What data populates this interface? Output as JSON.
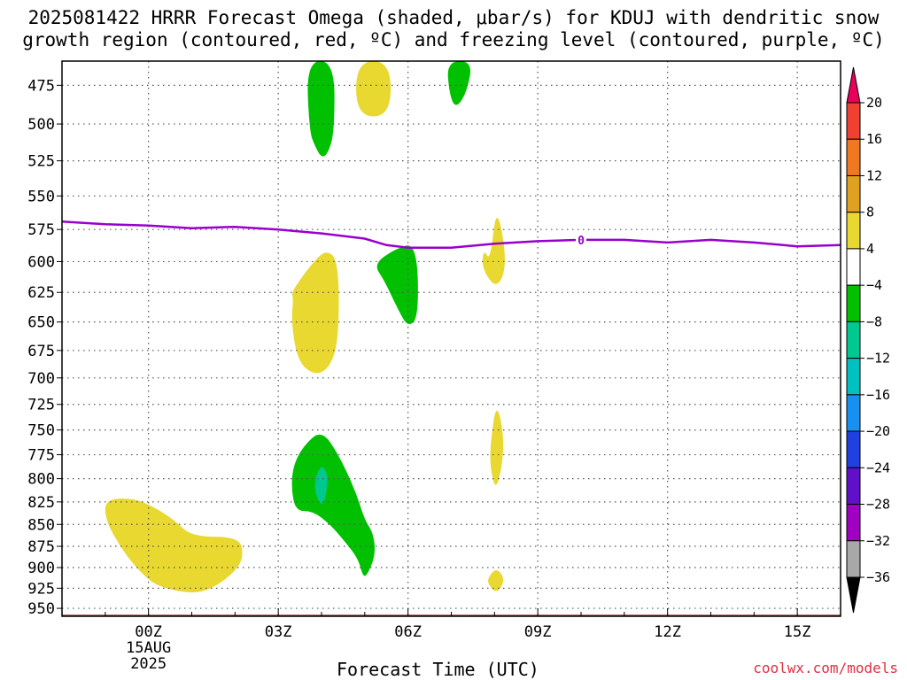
{
  "title": {
    "line1": "2025081422 HRRR Forecast Omega (shaded, μbar/s) for KDUJ with dendritic snow",
    "line2": "growth region (contoured, red, ºC) and freezing level (contoured, purple, ºC)"
  },
  "credit": "coolwx.com/models",
  "chart_data": {
    "type": "heatmap",
    "title": "2025081422 HRRR Forecast Omega (shaded, μbar/s) for KDUJ with dendritic snow growth region (contoured, red, ºC) and freezing level (contoured, purple, ºC)",
    "xlabel": "Forecast Time (UTC)",
    "ylabel": "",
    "x_unit": "hours since 2025-08-14 22Z",
    "xlim": [
      -2,
      16
    ],
    "ylim": [
      960,
      460
    ],
    "y_ticks": [
      475,
      500,
      525,
      550,
      575,
      600,
      625,
      650,
      675,
      700,
      725,
      750,
      775,
      800,
      825,
      850,
      875,
      900,
      925,
      950
    ],
    "x_ticks": [
      {
        "x": 0,
        "label": "00Z",
        "sub1": "15AUG",
        "sub2": "2025"
      },
      {
        "x": 3,
        "label": "03Z",
        "sub1": "",
        "sub2": ""
      },
      {
        "x": 6,
        "label": "06Z",
        "sub1": "",
        "sub2": ""
      },
      {
        "x": 9,
        "label": "09Z",
        "sub1": "",
        "sub2": ""
      },
      {
        "x": 12,
        "label": "12Z",
        "sub1": "",
        "sub2": ""
      },
      {
        "x": 15,
        "label": "15Z",
        "sub1": "",
        "sub2": ""
      }
    ],
    "grid": true,
    "colorbar": {
      "levels": [
        "20",
        "16",
        "12",
        "8",
        "4",
        "−4",
        "−8",
        "−12",
        "−16",
        "−20",
        "−24",
        "−28",
        "−32",
        "−36"
      ],
      "colors": [
        "#e8005a",
        "#f04030",
        "#f07820",
        "#e0a020",
        "#e8d830",
        "#ffffff",
        "#00c000",
        "#00c890",
        "#00c0c0",
        "#1890f0",
        "#2040e0",
        "#6010c8",
        "#a000c0",
        "#a8a8a8",
        "#000000"
      ]
    },
    "freezing_level": {
      "label": "0",
      "label_x": 10,
      "color": "#9900cc",
      "x": [
        -2,
        -1,
        0,
        1,
        2,
        3,
        4,
        5,
        5.5,
        6,
        7,
        8,
        9,
        10,
        11,
        12,
        13,
        14,
        15,
        16
      ],
      "y": [
        569,
        571,
        572,
        574,
        573,
        575,
        578,
        582,
        587,
        589,
        589,
        586,
        584,
        583,
        583,
        585,
        583,
        585,
        588,
        587
      ]
    },
    "terrain": {
      "color": "#a05030",
      "surface_hpa": 958
    },
    "regions": [
      {
        "level": "4 to 8",
        "color": "#e8d830",
        "x": [
          4.8,
          5.6,
          5.6,
          4.8
        ],
        "y": [
          460,
          460,
          495,
          495
        ]
      },
      {
        "level": "-4 to -8",
        "color": "#00c000",
        "x": [
          3.65,
          4.3,
          4.3,
          4.15,
          4.0,
          3.85,
          3.72
        ],
        "y": [
          460,
          460,
          505,
          520,
          523,
          515,
          505
        ]
      },
      {
        "level": "-4 to -8",
        "color": "#00c000",
        "x": [
          6.9,
          7.5,
          7.35,
          7.1,
          6.95
        ],
        "y": [
          460,
          460,
          480,
          490,
          480
        ]
      },
      {
        "level": "4 to 8",
        "color": "#e8d830",
        "x": [
          3.3,
          3.7,
          4.1,
          4.4,
          4.4,
          4.2,
          3.85,
          3.45,
          3.3,
          3.35
        ],
        "y": [
          625,
          605,
          590,
          600,
          665,
          690,
          698,
          685,
          650,
          630
        ]
      },
      {
        "level": "-4 to -8",
        "color": "#00c000",
        "x": [
          5.2,
          5.7,
          6.2,
          6.25,
          6.0,
          5.75,
          5.45
        ],
        "y": [
          602,
          590,
          585,
          645,
          655,
          638,
          615
        ]
      },
      {
        "level": "4 to 8",
        "color": "#e8d830",
        "x": [
          7.9,
          8.05,
          8.3,
          8.05,
          7.7,
          7.75
        ],
        "y": [
          600,
          555,
          602,
          623,
          605,
          590
        ]
      },
      {
        "level": "4 to 8",
        "color": "#e8d830",
        "x": [
          7.9,
          8.05,
          8.25,
          8.05,
          7.9
        ],
        "y": [
          765,
          720,
          765,
          815,
          790
        ]
      },
      {
        "level": "4 to 8",
        "color": "#e8d830",
        "x": [
          7.85,
          8.05,
          8.25,
          8.05,
          7.85
        ],
        "y": [
          912,
          900,
          915,
          932,
          920
        ]
      },
      {
        "level": "4 to 8",
        "color": "#e8d830",
        "x": [
          -1,
          -0.35,
          0.1,
          0.6,
          1,
          2.1,
          2.2,
          2.0,
          1.5,
          1.0,
          0.2,
          -0.2,
          -0.6,
          -1
        ],
        "y": [
          822,
          821,
          830,
          845,
          864,
          864,
          887,
          905,
          925,
          932,
          923,
          905,
          880,
          845
        ]
      },
      {
        "level": "-4 to -8",
        "color": "#00c000",
        "x": [
          3.35,
          3.6,
          4.0,
          4.4,
          4.8,
          5.0,
          5.2,
          5.25,
          5.05,
          4.95,
          4.85,
          4.55,
          4.2,
          3.8,
          3.4,
          3.3
        ],
        "y": [
          785,
          765,
          750,
          775,
          815,
          845,
          860,
          885,
          910,
          910,
          890,
          870,
          850,
          835,
          835,
          810
        ]
      },
      {
        "level": "-8 to -12",
        "color": "#00c890",
        "x": [
          3.85,
          4.0,
          4.15,
          4.1,
          4.0,
          3.85
        ],
        "y": [
          800,
          785,
          795,
          820,
          830,
          815
        ]
      }
    ]
  }
}
